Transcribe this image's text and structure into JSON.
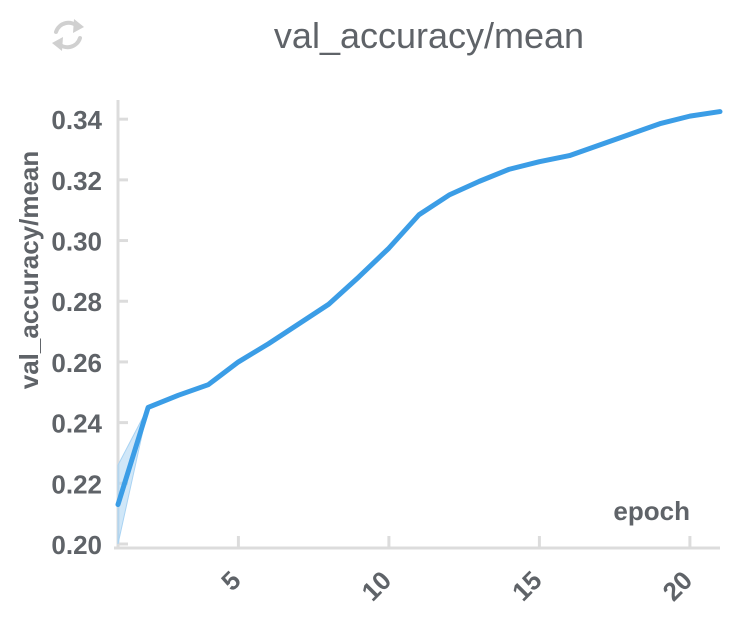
{
  "colors": {
    "line": "#3b9de6",
    "band": "#a9d3f3",
    "axis": "#dcdcdc",
    "text": "#5f6368",
    "icon": "#d0d0d0"
  },
  "icons": {
    "refresh": "refresh-icon"
  },
  "chart_data": {
    "type": "line",
    "title": "val_accuracy/mean",
    "xlabel": "epoch",
    "ylabel": "val_accuracy/mean",
    "xlim": [
      1,
      21
    ],
    "ylim": [
      0.2,
      0.345
    ],
    "x_ticks": [
      5,
      10,
      15,
      20
    ],
    "y_ticks": [
      0.2,
      0.22,
      0.24,
      0.26,
      0.28,
      0.3,
      0.32,
      0.34
    ],
    "grid": false,
    "legend": "none",
    "series": [
      {
        "x": [
          1,
          2,
          3,
          4,
          5,
          6,
          7,
          8,
          9,
          10,
          11,
          12,
          13,
          14,
          15,
          16,
          17,
          18,
          19,
          20,
          21
        ],
        "y": [
          0.213,
          0.245,
          0.249,
          0.2525,
          0.26,
          0.266,
          0.2725,
          0.279,
          0.288,
          0.2975,
          0.3085,
          0.315,
          0.3195,
          0.3235,
          0.326,
          0.328,
          0.3315,
          0.335,
          0.3385,
          0.341,
          0.3425
        ],
        "band_low": [
          0.2,
          0.245,
          0.249,
          0.2525,
          0.26,
          0.266,
          0.2725,
          0.279,
          0.288,
          0.2975,
          0.3085,
          0.315,
          0.3195,
          0.3235,
          0.326,
          0.328,
          0.3315,
          0.335,
          0.3385,
          0.341,
          0.3425
        ],
        "band_high": [
          0.226,
          0.245,
          0.249,
          0.2525,
          0.26,
          0.266,
          0.2725,
          0.279,
          0.288,
          0.2975,
          0.3085,
          0.315,
          0.3195,
          0.3235,
          0.326,
          0.328,
          0.3315,
          0.335,
          0.3385,
          0.341,
          0.3425
        ]
      }
    ]
  }
}
